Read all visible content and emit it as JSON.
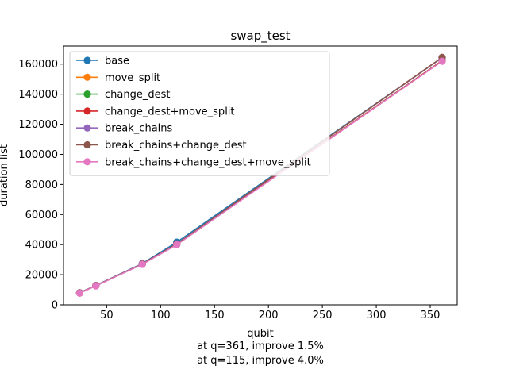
{
  "chart_data": {
    "type": "line",
    "title": "swap_test",
    "xlabel": "qubit",
    "ylabel": "duration list",
    "xlim": [
      10,
      375
    ],
    "ylim": [
      0,
      172000
    ],
    "xticks": [
      50,
      100,
      150,
      200,
      250,
      300,
      350
    ],
    "yticks": [
      0,
      20000,
      40000,
      60000,
      80000,
      100000,
      120000,
      140000,
      160000
    ],
    "grid": false,
    "legend_position": "upper-left",
    "x": [
      25,
      40,
      83,
      115,
      361
    ],
    "series": [
      {
        "name": "base",
        "color": "#1f77b4",
        "values": [
          8000,
          12900,
          27400,
          41600,
          164300
        ]
      },
      {
        "name": "move_split",
        "color": "#ff7f0e",
        "values": [
          7900,
          12700,
          27000,
          40100,
          162200
        ]
      },
      {
        "name": "change_dest",
        "color": "#2ca02c",
        "values": [
          7900,
          12700,
          27000,
          40100,
          162300
        ]
      },
      {
        "name": "change_dest+move_split",
        "color": "#d62728",
        "values": [
          7900,
          12700,
          27000,
          40100,
          162200
        ]
      },
      {
        "name": "break_chains",
        "color": "#9467bd",
        "values": [
          8000,
          12800,
          27200,
          40500,
          164300
        ]
      },
      {
        "name": "break_chains+change_dest",
        "color": "#8c564b",
        "values": [
          8000,
          12800,
          27200,
          40500,
          164500
        ]
      },
      {
        "name": "break_chains+change_dest+move_split",
        "color": "#e377c2",
        "values": [
          7800,
          12600,
          26900,
          39900,
          161900
        ]
      }
    ],
    "annotations": [
      "at q=361, improve 1.5%",
      "at q=115, improve 4.0%"
    ]
  }
}
